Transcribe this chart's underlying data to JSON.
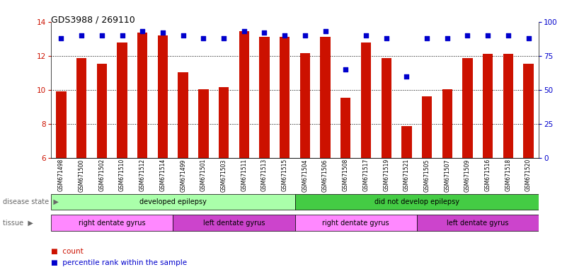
{
  "title": "GDS3988 / 269110",
  "samples": [
    "GSM671498",
    "GSM671500",
    "GSM671502",
    "GSM671510",
    "GSM671512",
    "GSM671514",
    "GSM671499",
    "GSM671501",
    "GSM671503",
    "GSM671511",
    "GSM671513",
    "GSM671515",
    "GSM671504",
    "GSM671506",
    "GSM671508",
    "GSM671517",
    "GSM671519",
    "GSM671521",
    "GSM671505",
    "GSM671507",
    "GSM671509",
    "GSM671516",
    "GSM671518",
    "GSM671520"
  ],
  "bar_values": [
    9.9,
    11.85,
    11.55,
    12.8,
    13.35,
    13.2,
    11.05,
    10.05,
    10.15,
    13.45,
    13.1,
    13.1,
    12.15,
    13.1,
    9.55,
    12.8,
    11.85,
    7.85,
    9.6,
    10.05,
    11.85,
    12.1,
    12.1,
    11.55
  ],
  "percentile_values": [
    88,
    90,
    90,
    90,
    93,
    92,
    90,
    88,
    88,
    93,
    92,
    90,
    90,
    93,
    65,
    90,
    88,
    60,
    88,
    88,
    90,
    90,
    90,
    88
  ],
  "bar_color": "#cc1100",
  "dot_color": "#0000cc",
  "ylim_left": [
    6,
    14
  ],
  "ylim_right": [
    0,
    100
  ],
  "yticks_left": [
    6,
    8,
    10,
    12,
    14
  ],
  "yticks_right": [
    0,
    25,
    50,
    75,
    100
  ],
  "disease_state_groups": [
    {
      "label": "developed epilepsy",
      "start": 0,
      "end": 12,
      "color": "#aaffaa"
    },
    {
      "label": "did not develop epilepsy",
      "start": 12,
      "end": 24,
      "color": "#44cc44"
    }
  ],
  "tissue_groups": [
    {
      "label": "right dentate gyrus",
      "start": 0,
      "end": 6,
      "color": "#ff88ff"
    },
    {
      "label": "left dentate gyrus",
      "start": 6,
      "end": 12,
      "color": "#cc44cc"
    },
    {
      "label": "right dentate gyrus",
      "start": 12,
      "end": 18,
      "color": "#ff88ff"
    },
    {
      "label": "left dentate gyrus",
      "start": 18,
      "end": 24,
      "color": "#cc44cc"
    }
  ],
  "legend_count_label": "count",
  "legend_percentile_label": "percentile rank within the sample",
  "bar_color_label_color": "#cc1100",
  "dot_color_label_color": "#0000cc",
  "background_color": "#ffffff"
}
